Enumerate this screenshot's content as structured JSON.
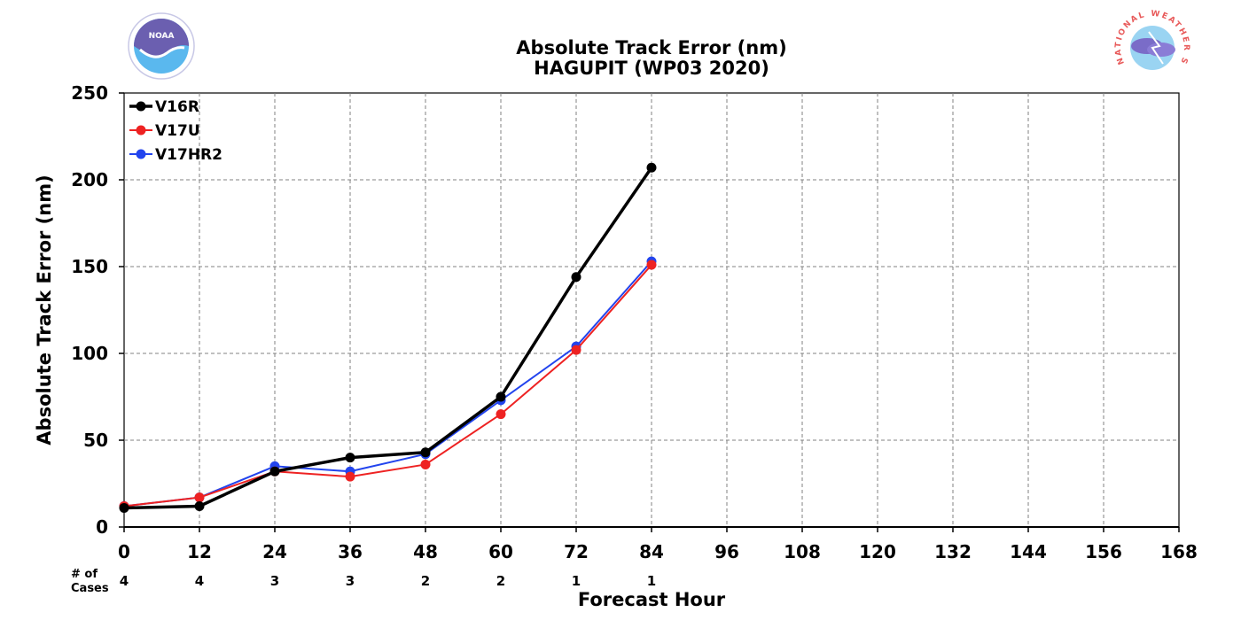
{
  "chart_data": {
    "type": "line",
    "title": "Absolute Track Error (nm)",
    "subtitle": "HAGUPIT (WP03 2020)",
    "xlabel": "Forecast Hour",
    "ylabel": "Absolute Track Error (nm)",
    "xlim": [
      0,
      168
    ],
    "ylim": [
      0,
      250
    ],
    "xticks": [
      0,
      12,
      24,
      36,
      48,
      60,
      72,
      84,
      96,
      108,
      120,
      132,
      144,
      156,
      168
    ],
    "yticks": [
      0,
      50,
      100,
      150,
      200,
      250
    ],
    "grid": true,
    "legend_position": "top-left",
    "series": [
      {
        "name": "V16R",
        "color": "#000000",
        "line_width": 3.5,
        "x": [
          0,
          12,
          24,
          36,
          48,
          60,
          72,
          84
        ],
        "y": [
          11,
          12,
          32,
          40,
          43,
          75,
          144,
          207
        ]
      },
      {
        "name": "V17U",
        "color": "#ee2222",
        "line_width": 2,
        "x": [
          0,
          12,
          24,
          36,
          48,
          60,
          72,
          84
        ],
        "y": [
          12,
          17,
          32,
          29,
          36,
          65,
          102,
          151
        ]
      },
      {
        "name": "V17HR2",
        "color": "#2244ee",
        "line_width": 2,
        "x": [
          0,
          12,
          24,
          36,
          48,
          60,
          72,
          84
        ],
        "y": [
          12,
          17,
          35,
          32,
          42,
          73,
          104,
          153
        ]
      }
    ],
    "cases": {
      "label_line1": "# of",
      "label_line2": "Cases",
      "x": [
        0,
        12,
        24,
        36,
        48,
        60,
        72,
        84
      ],
      "counts": [
        "4",
        "4",
        "3",
        "3",
        "2",
        "2",
        "1",
        "1"
      ]
    }
  },
  "logos": {
    "left": {
      "name": "noaa-logo",
      "text": "NOAA"
    },
    "right": {
      "name": "nws-logo",
      "text": "NATIONAL WEATHER SERVICE"
    }
  }
}
